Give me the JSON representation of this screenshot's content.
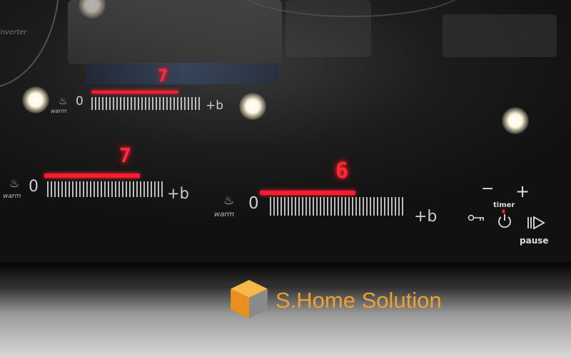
{
  "scene": {
    "description_colors": {
      "display_red": "#ff2a3a",
      "glass": "#111111",
      "brand_orange": "#f0a030"
    }
  },
  "cooktop": {
    "zone_back": {
      "power_level": "7",
      "warm_label": "warm",
      "zero_label": "0",
      "boost_label": "+b",
      "level_fraction": 0.7
    },
    "zone_left": {
      "power_level": "7",
      "warm_label": "warm",
      "zero_label": "0",
      "boost_label": "+b",
      "level_fraction": 0.7
    },
    "zone_center": {
      "power_level": "6",
      "warm_label": "warm",
      "zero_label": "0",
      "boost_label": "+b",
      "level_fraction": 0.6
    },
    "controls": {
      "minus_label": "−",
      "plus_label": "+",
      "timer_label": "timer",
      "pause_label": "pause",
      "key_icon": "key-lock-icon",
      "power_icon": "power-icon",
      "pause_icon": "pause-play-icon"
    },
    "corner_text": "inverter"
  },
  "watermark": {
    "brand_text": "S.Home Solution",
    "logo_icon": "orange-cube-icon"
  }
}
